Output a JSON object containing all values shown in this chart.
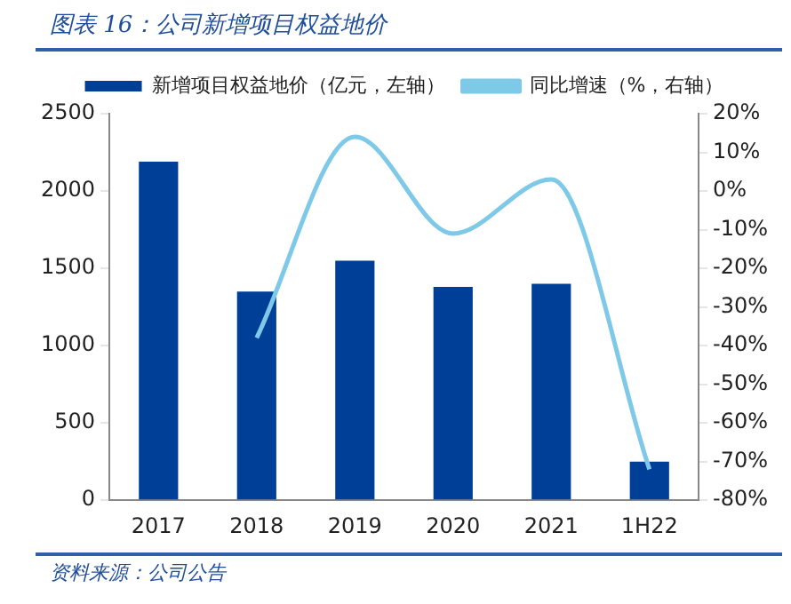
{
  "chart_data": {
    "type": "bar",
    "title": "图表 16：公司新增项目权益地价",
    "categories": [
      "2017",
      "2018",
      "2019",
      "2020",
      "2021",
      "1H22"
    ],
    "series": [
      {
        "name": "新增项目权益地价（亿元，左轴）",
        "color": "#003f98",
        "values": [
          2190,
          1350,
          1550,
          1380,
          1400,
          250
        ]
      },
      {
        "name": "同比增速（%，右轴）",
        "type": "line",
        "axis": "y2",
        "color": "#7ec8e8",
        "values": [
          null,
          -38,
          14,
          -11,
          3,
          -72
        ]
      }
    ],
    "ylim": [
      0,
      2500
    ],
    "yticks": [
      0,
      500,
      1000,
      1500,
      2000,
      2500
    ],
    "y2lim": [
      -80,
      20
    ],
    "y2ticks": [
      {
        "value": -80,
        "label": "-80%"
      },
      {
        "value": -70,
        "label": "-70%"
      },
      {
        "value": -60,
        "label": "-60%"
      },
      {
        "value": -50,
        "label": "-50%"
      },
      {
        "value": -40,
        "label": "-40%"
      },
      {
        "value": -30,
        "label": "-30%"
      },
      {
        "value": -20,
        "label": "-20%"
      },
      {
        "value": -10,
        "label": "-10%"
      },
      {
        "value": 0,
        "label": "0%"
      },
      {
        "value": 10,
        "label": "10%"
      },
      {
        "value": 20,
        "label": "20%"
      }
    ],
    "grid": false,
    "legend": "top",
    "marker": "none",
    "annotations": [
      "资料来源：公司公告"
    ]
  }
}
